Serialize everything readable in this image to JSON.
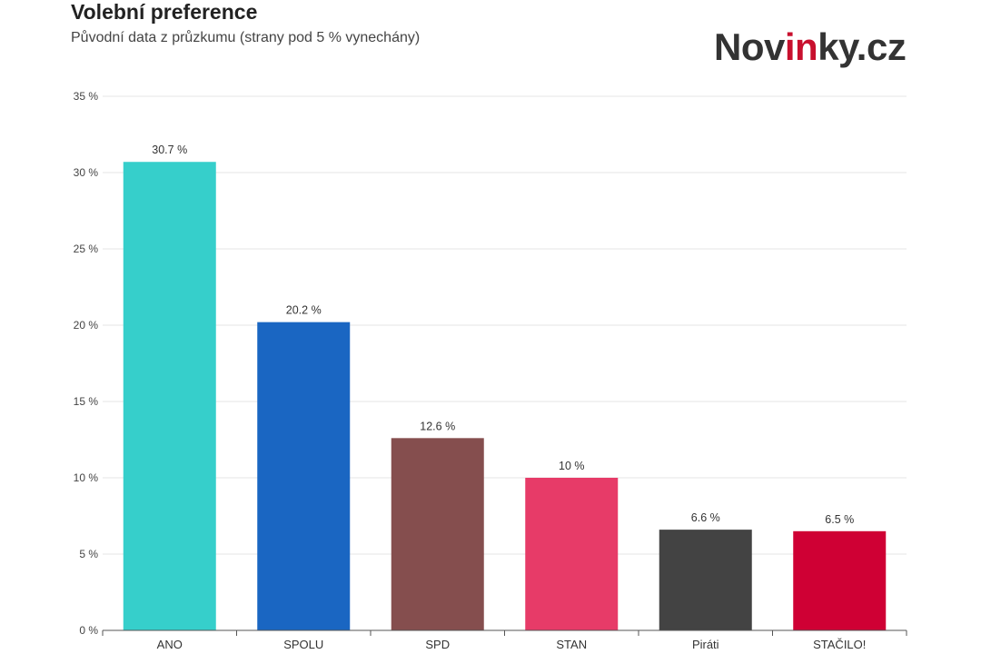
{
  "header": {
    "title": "Volební preference",
    "subtitle": "Původní data z průzkumu (strany pod 5 % vynechány)"
  },
  "logo": {
    "part1": "Nov",
    "part2": "in",
    "part3": "ky.cz",
    "accent_color": "#c8102e",
    "text_color": "#333333"
  },
  "chart_data": {
    "type": "bar",
    "title": "Volební preference",
    "subtitle": "Původní data z průzkumu (strany pod 5 % vynechány)",
    "categories": [
      "ANO",
      "SPOLU",
      "SPD",
      "STAN",
      "Piráti",
      "STAČILO!"
    ],
    "values": [
      30.7,
      20.2,
      12.6,
      10,
      6.6,
      6.5
    ],
    "value_labels": [
      "30.7 %",
      "20.2 %",
      "12.6 %",
      "10 %",
      "6.6 %",
      "6.5 %"
    ],
    "colors": [
      "#36cfcb",
      "#1a66c2",
      "#854e4e",
      "#e73b68",
      "#434343",
      "#cf0034"
    ],
    "ylim": [
      0,
      35
    ],
    "yticks": [
      0,
      5,
      10,
      15,
      20,
      25,
      30,
      35
    ],
    "ytick_labels": [
      "0 %",
      "5 %",
      "10 %",
      "15 %",
      "20 %",
      "25 %",
      "30 %",
      "35 %"
    ],
    "xlabel": "",
    "ylabel": "",
    "grid": true,
    "legend": "none"
  }
}
